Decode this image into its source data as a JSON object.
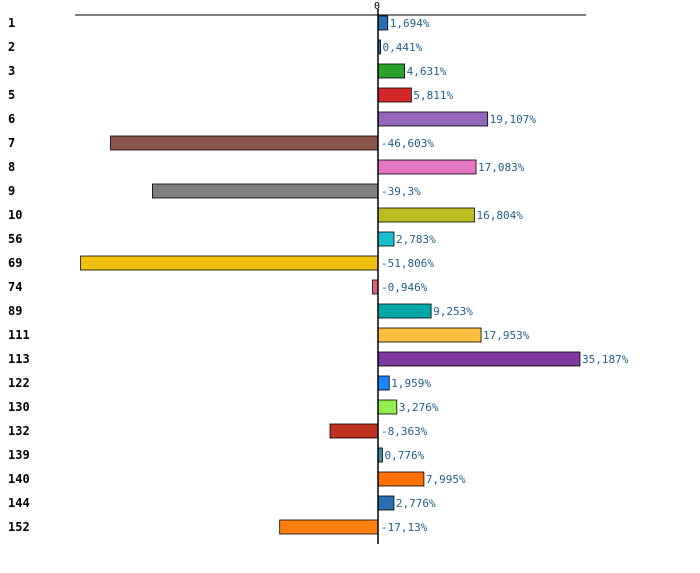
{
  "chart_data": {
    "type": "bar",
    "orientation": "horizontal",
    "title": "",
    "xlabel": "",
    "ylabel": "",
    "xlim": [
      -55,
      37
    ],
    "zero_tick_label": "0",
    "categories": [
      "1",
      "2",
      "3",
      "5",
      "6",
      "7",
      "8",
      "9",
      "10",
      "56",
      "69",
      "74",
      "89",
      "111",
      "113",
      "122",
      "130",
      "132",
      "139",
      "140",
      "144",
      "152"
    ],
    "values": [
      1.694,
      0.441,
      4.631,
      5.811,
      19.107,
      -46.603,
      17.083,
      -39.3,
      16.804,
      2.783,
      -51.806,
      -0.946,
      9.253,
      17.953,
      35.187,
      1.959,
      3.276,
      -8.363,
      0.776,
      7.995,
      2.776,
      -17.13
    ],
    "value_labels": [
      "1,694%",
      "0,441%",
      "4,631%",
      "5,811%",
      "19,107%",
      "-46,603%",
      "17,083%",
      "-39,3%",
      "16,804%",
      "2,783%",
      "-51,806%",
      "-0,946%",
      "9,253%",
      "17,953%",
      "35,187%",
      "1,959%",
      "3,276%",
      "-8,363%",
      "0,776%",
      "7,995%",
      "2,776%",
      "-17,13%"
    ],
    "colors": [
      "#2a6fb0",
      "#1f77b4",
      "#2ca02c",
      "#d62728",
      "#9467bd",
      "#8c564b",
      "#e377c2",
      "#7f7f7f",
      "#bcbd22",
      "#17becf",
      "#f0c010",
      "#e0607e",
      "#00a8a8",
      "#ffbf40",
      "#7e3a9e",
      "#1a85ff",
      "#90ee50",
      "#c03020",
      "#3a8fa0",
      "#ff7000",
      "#2a6fb0",
      "#ff8010"
    ]
  }
}
